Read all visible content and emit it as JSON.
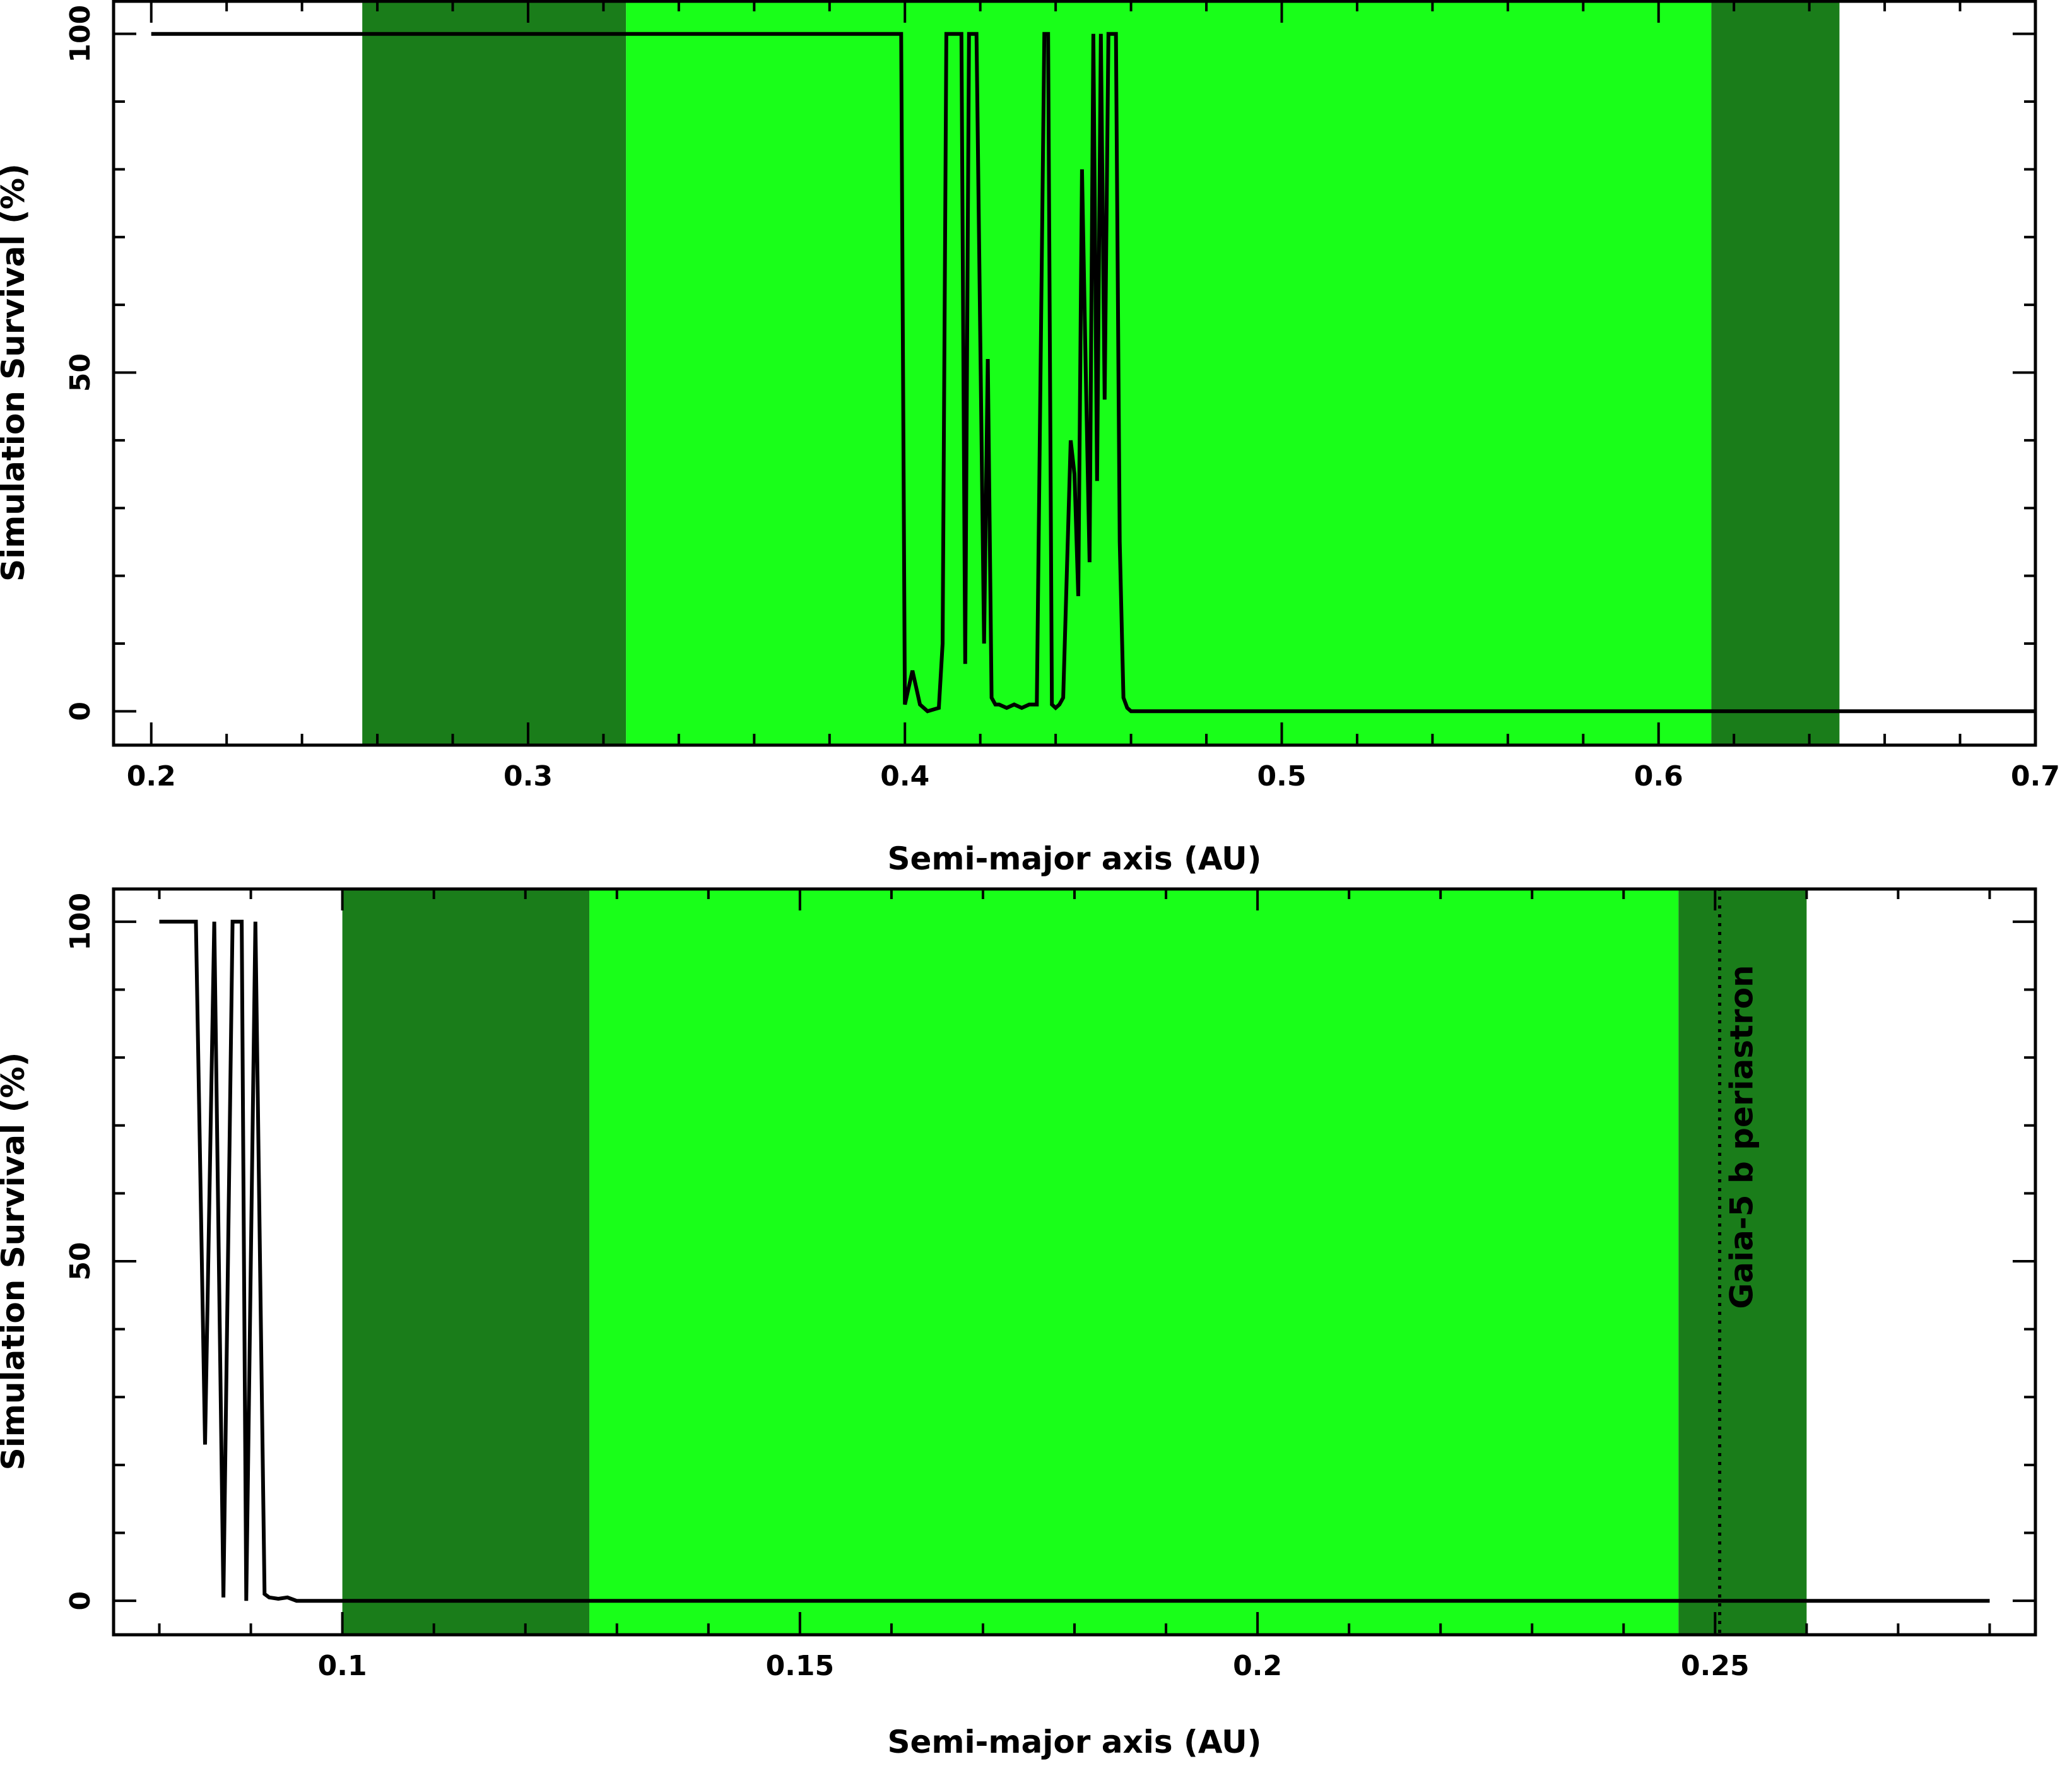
{
  "colors": {
    "habitable_zone_conservative": "#19ff19",
    "habitable_zone_optimistic": "#1a7d1a",
    "survival_line": "#000000",
    "background": "#ffffff"
  },
  "chart_data": [
    {
      "type": "line",
      "xlabel": "Semi-major axis (AU)",
      "ylabel": "Simulation Survival (%)",
      "xlim": [
        0.19,
        0.7
      ],
      "ylim": [
        -5,
        105
      ],
      "xticks": [
        0.2,
        0.3,
        0.4,
        0.5,
        0.6,
        0.7
      ],
      "xtick_labels": [
        "0.2",
        "0.3",
        "0.4",
        "0.5",
        "0.6",
        "0.7"
      ],
      "yticks": [
        0,
        50,
        100
      ],
      "ytick_labels": [
        "0",
        "50",
        "100"
      ],
      "grid": false,
      "shaded_regions": [
        {
          "zone": "optimistic",
          "x_range": [
            0.256,
            0.326
          ]
        },
        {
          "zone": "conservative",
          "x_range": [
            0.326,
            0.614
          ]
        },
        {
          "zone": "optimistic",
          "x_range": [
            0.614,
            0.648
          ]
        }
      ],
      "series": [
        {
          "x": [
            0.2,
            0.399,
            0.4,
            0.402,
            0.404,
            0.406,
            0.409,
            0.41,
            0.411,
            0.412,
            0.413,
            0.415,
            0.416,
            0.417,
            0.418,
            0.419,
            0.421,
            0.422,
            0.423,
            0.424,
            0.425,
            0.427,
            0.429,
            0.431,
            0.433,
            0.435,
            0.437,
            0.438,
            0.439,
            0.44,
            0.441,
            0.442,
            0.444,
            0.445,
            0.446,
            0.447,
            0.448,
            0.449,
            0.45,
            0.451,
            0.452,
            0.453,
            0.454,
            0.455,
            0.456,
            0.457,
            0.458,
            0.459,
            0.46,
            0.461,
            0.463,
            0.7
          ],
          "y": [
            100,
            100,
            1,
            6,
            1,
            0,
            0.5,
            10,
            100,
            100,
            100,
            100,
            7,
            100,
            100,
            100,
            10,
            52,
            2,
            1,
            1,
            0.5,
            1,
            0.5,
            1,
            1,
            100,
            100,
            1,
            0.5,
            1,
            2,
            40,
            35,
            17,
            80,
            50,
            22,
            100,
            34,
            100,
            46,
            100,
            100,
            100,
            25,
            2,
            0.5,
            0,
            0,
            0,
            0
          ]
        }
      ]
    },
    {
      "type": "line",
      "xlabel": "Semi-major axis (AU)",
      "ylabel": "Simulation Survival (%)",
      "xlim": [
        0.075,
        0.285
      ],
      "ylim": [
        -5,
        105
      ],
      "xticks": [
        0.1,
        0.15,
        0.2,
        0.25
      ],
      "xtick_labels": [
        "0.1",
        "0.15",
        "0.2",
        "0.25"
      ],
      "yticks": [
        0,
        50,
        100
      ],
      "ytick_labels": [
        "0",
        "50",
        "100"
      ],
      "grid": false,
      "shaded_regions": [
        {
          "zone": "optimistic",
          "x_range": [
            0.1,
            0.127
          ]
        },
        {
          "zone": "conservative",
          "x_range": [
            0.127,
            0.246
          ]
        },
        {
          "zone": "optimistic",
          "x_range": [
            0.246,
            0.26
          ]
        }
      ],
      "annotations": [
        {
          "type": "vline",
          "x": 0.2505,
          "style": "dotted",
          "label": "Gaia-5 b periastron"
        }
      ],
      "series": [
        {
          "x": [
            0.08,
            0.084,
            0.085,
            0.086,
            0.087,
            0.088,
            0.089,
            0.0895,
            0.0905,
            0.0915,
            0.092,
            0.093,
            0.094,
            0.095,
            0.096,
            0.098,
            0.28
          ],
          "y": [
            100,
            100,
            23,
            100,
            0.5,
            100,
            100,
            0,
            100,
            1,
            0.5,
            0.3,
            0.5,
            0,
            0,
            0,
            0
          ]
        }
      ]
    }
  ]
}
